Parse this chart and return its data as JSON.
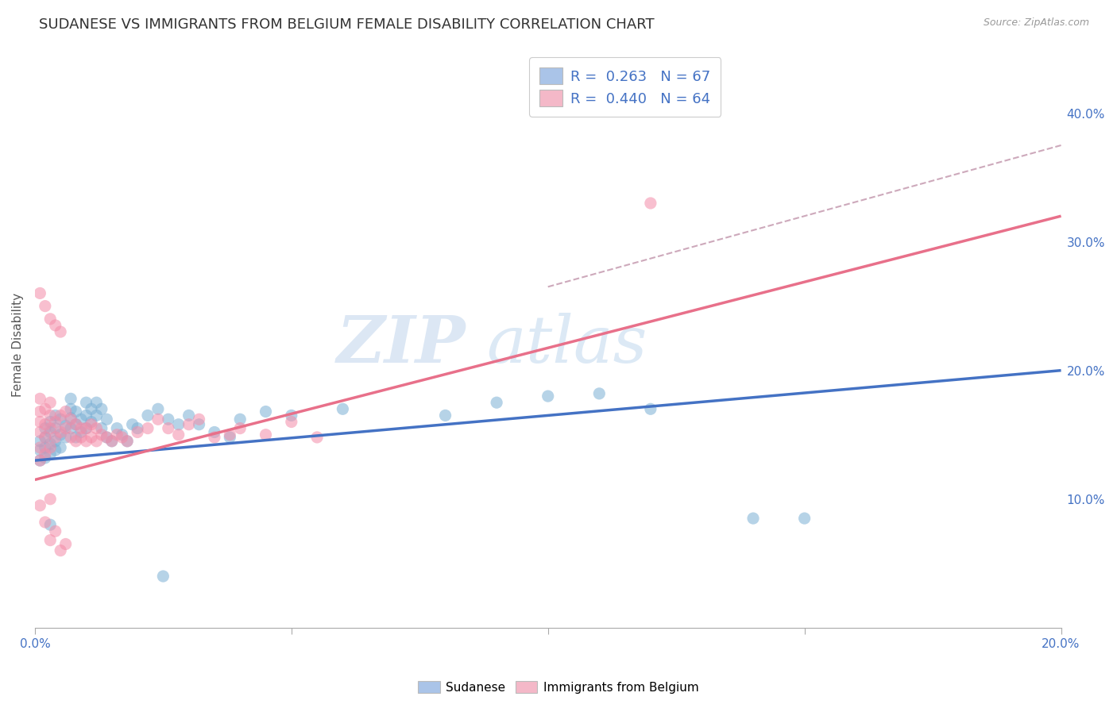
{
  "title": "SUDANESE VS IMMIGRANTS FROM BELGIUM FEMALE DISABILITY CORRELATION CHART",
  "source": "Source: ZipAtlas.com",
  "ylabel": "Female Disability",
  "watermark_zip": "ZIP",
  "watermark_atlas": "atlas",
  "xlim": [
    0.0,
    0.2
  ],
  "ylim": [
    0.0,
    0.44
  ],
  "yticks_right": [
    0.1,
    0.2,
    0.3,
    0.4
  ],
  "ytick_labels_right": [
    "10.0%",
    "20.0%",
    "30.0%",
    "40.0%"
  ],
  "sudanese_color": "#7bafd4",
  "belgium_color": "#f48ca8",
  "blue_line_color": "#4472c4",
  "pink_line_color": "#e8708a",
  "dashed_line_color": "#c8a0b4",
  "grid_color": "#dddddd",
  "background_color": "#ffffff",
  "title_fontsize": 13,
  "axis_label_fontsize": 11,
  "tick_fontsize": 11,
  "blue_line": {
    "x0": 0.0,
    "y0": 0.13,
    "x1": 0.2,
    "y1": 0.2
  },
  "pink_line": {
    "x0": 0.0,
    "y0": 0.115,
    "x1": 0.2,
    "y1": 0.32
  },
  "dashed_line": {
    "x0": 0.1,
    "y0": 0.265,
    "x1": 0.2,
    "y1": 0.375
  },
  "sudanese_points": [
    [
      0.001,
      0.13
    ],
    [
      0.001,
      0.138
    ],
    [
      0.001,
      0.145
    ],
    [
      0.002,
      0.132
    ],
    [
      0.002,
      0.14
    ],
    [
      0.002,
      0.148
    ],
    [
      0.002,
      0.155
    ],
    [
      0.003,
      0.135
    ],
    [
      0.003,
      0.143
    ],
    [
      0.003,
      0.152
    ],
    [
      0.003,
      0.16
    ],
    [
      0.004,
      0.138
    ],
    [
      0.004,
      0.145
    ],
    [
      0.004,
      0.155
    ],
    [
      0.004,
      0.165
    ],
    [
      0.005,
      0.14
    ],
    [
      0.005,
      0.15
    ],
    [
      0.005,
      0.162
    ],
    [
      0.006,
      0.148
    ],
    [
      0.006,
      0.157
    ],
    [
      0.007,
      0.155
    ],
    [
      0.007,
      0.163
    ],
    [
      0.007,
      0.17
    ],
    [
      0.007,
      0.178
    ],
    [
      0.008,
      0.148
    ],
    [
      0.008,
      0.158
    ],
    [
      0.008,
      0.168
    ],
    [
      0.009,
      0.152
    ],
    [
      0.009,
      0.162
    ],
    [
      0.01,
      0.155
    ],
    [
      0.01,
      0.165
    ],
    [
      0.01,
      0.175
    ],
    [
      0.011,
      0.16
    ],
    [
      0.011,
      0.17
    ],
    [
      0.012,
      0.165
    ],
    [
      0.012,
      0.175
    ],
    [
      0.013,
      0.155
    ],
    [
      0.013,
      0.17
    ],
    [
      0.014,
      0.148
    ],
    [
      0.014,
      0.162
    ],
    [
      0.015,
      0.145
    ],
    [
      0.016,
      0.155
    ],
    [
      0.017,
      0.15
    ],
    [
      0.018,
      0.145
    ],
    [
      0.019,
      0.158
    ],
    [
      0.02,
      0.155
    ],
    [
      0.022,
      0.165
    ],
    [
      0.024,
      0.17
    ],
    [
      0.026,
      0.162
    ],
    [
      0.028,
      0.158
    ],
    [
      0.03,
      0.165
    ],
    [
      0.032,
      0.158
    ],
    [
      0.035,
      0.152
    ],
    [
      0.038,
      0.148
    ],
    [
      0.04,
      0.162
    ],
    [
      0.045,
      0.168
    ],
    [
      0.05,
      0.165
    ],
    [
      0.06,
      0.17
    ],
    [
      0.08,
      0.165
    ],
    [
      0.09,
      0.175
    ],
    [
      0.1,
      0.18
    ],
    [
      0.11,
      0.182
    ],
    [
      0.12,
      0.17
    ],
    [
      0.14,
      0.085
    ],
    [
      0.15,
      0.085
    ],
    [
      0.003,
      0.08
    ],
    [
      0.025,
      0.04
    ]
  ],
  "belgium_points": [
    [
      0.001,
      0.13
    ],
    [
      0.001,
      0.14
    ],
    [
      0.001,
      0.152
    ],
    [
      0.001,
      0.16
    ],
    [
      0.001,
      0.168
    ],
    [
      0.001,
      0.178
    ],
    [
      0.001,
      0.26
    ],
    [
      0.002,
      0.135
    ],
    [
      0.002,
      0.148
    ],
    [
      0.002,
      0.158
    ],
    [
      0.002,
      0.17
    ],
    [
      0.002,
      0.25
    ],
    [
      0.003,
      0.14
    ],
    [
      0.003,
      0.155
    ],
    [
      0.003,
      0.165
    ],
    [
      0.003,
      0.175
    ],
    [
      0.003,
      0.24
    ],
    [
      0.004,
      0.148
    ],
    [
      0.004,
      0.16
    ],
    [
      0.004,
      0.235
    ],
    [
      0.005,
      0.152
    ],
    [
      0.005,
      0.165
    ],
    [
      0.005,
      0.23
    ],
    [
      0.006,
      0.155
    ],
    [
      0.006,
      0.168
    ],
    [
      0.007,
      0.148
    ],
    [
      0.007,
      0.162
    ],
    [
      0.008,
      0.145
    ],
    [
      0.008,
      0.158
    ],
    [
      0.009,
      0.148
    ],
    [
      0.009,
      0.155
    ],
    [
      0.01,
      0.145
    ],
    [
      0.01,
      0.155
    ],
    [
      0.011,
      0.148
    ],
    [
      0.011,
      0.158
    ],
    [
      0.012,
      0.145
    ],
    [
      0.012,
      0.155
    ],
    [
      0.013,
      0.15
    ],
    [
      0.014,
      0.148
    ],
    [
      0.015,
      0.145
    ],
    [
      0.016,
      0.15
    ],
    [
      0.017,
      0.148
    ],
    [
      0.018,
      0.145
    ],
    [
      0.02,
      0.152
    ],
    [
      0.022,
      0.155
    ],
    [
      0.024,
      0.162
    ],
    [
      0.026,
      0.155
    ],
    [
      0.028,
      0.15
    ],
    [
      0.03,
      0.158
    ],
    [
      0.032,
      0.162
    ],
    [
      0.035,
      0.148
    ],
    [
      0.038,
      0.15
    ],
    [
      0.04,
      0.155
    ],
    [
      0.045,
      0.15
    ],
    [
      0.05,
      0.16
    ],
    [
      0.055,
      0.148
    ],
    [
      0.003,
      0.068
    ],
    [
      0.004,
      0.075
    ],
    [
      0.005,
      0.06
    ],
    [
      0.006,
      0.065
    ],
    [
      0.001,
      0.095
    ],
    [
      0.002,
      0.082
    ],
    [
      0.12,
      0.33
    ],
    [
      0.003,
      0.1
    ]
  ]
}
